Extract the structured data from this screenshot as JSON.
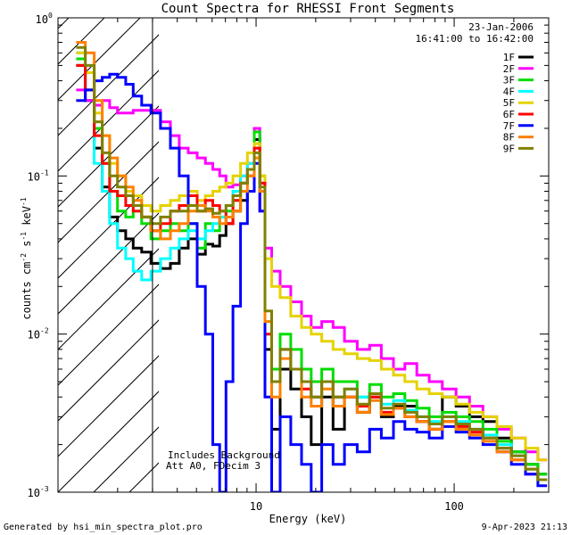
{
  "chart_data": {
    "type": "line",
    "title": "Count Spectra for RHESSI Front Segments",
    "xlabel": "Energy (keV)",
    "ylabel_parts": {
      "a": "counts cm",
      "b": "-2",
      "c": " s",
      "d": "-1",
      "e": " keV",
      "f": "-1"
    },
    "x_scale": "log",
    "y_scale": "log",
    "xlim": [
      1.0,
      300
    ],
    "ylim": [
      0.001,
      1.0
    ],
    "x_tick_labels": [
      {
        "v": 10,
        "label": "10"
      },
      {
        "v": 100,
        "label": "100"
      }
    ],
    "y_tick_labels": [
      {
        "v": 1.0,
        "base": "10",
        "exp": "0"
      },
      {
        "v": 0.1,
        "base": "10",
        "exp": "-1"
      },
      {
        "v": 0.01,
        "base": "10",
        "exp": "-2"
      },
      {
        "v": 0.001,
        "base": "10",
        "exp": "-3"
      }
    ],
    "shaded_region_keV": [
      1.0,
      3.0
    ],
    "date": "23-Jan-2006",
    "time_range": "16:41:00 to 16:42:00",
    "annotation_lines": [
      "Includes Background",
      "Att A0, FDecim 3"
    ],
    "legend": [
      {
        "name": "1F",
        "color": "#000000"
      },
      {
        "name": "2F",
        "color": "#ff00ff"
      },
      {
        "name": "3F",
        "color": "#00dd00"
      },
      {
        "name": "4F",
        "color": "#00ffff"
      },
      {
        "name": "5F",
        "color": "#e6d200"
      },
      {
        "name": "6F",
        "color": "#ff0000"
      },
      {
        "name": "7F",
        "color": "#0000ff"
      },
      {
        "name": "8F",
        "color": "#ff8000"
      },
      {
        "name": "9F",
        "color": "#808000"
      }
    ],
    "series": [
      {
        "name": "1F",
        "x": [
          1.3,
          1.45,
          1.6,
          1.75,
          1.9,
          2.1,
          2.3,
          2.5,
          2.8,
          3.1,
          3.5,
          3.9,
          4.3,
          4.8,
          5.3,
          5.8,
          6.3,
          6.8,
          7.3,
          8.0,
          8.7,
          9.4,
          10.2,
          10.7,
          11.5,
          12.5,
          14,
          16,
          18,
          20,
          23,
          26,
          30,
          35,
          40,
          46,
          53,
          60,
          70,
          80,
          95,
          110,
          130,
          150,
          180,
          210,
          250,
          280
        ],
        "y": [
          0.5,
          0.3,
          0.15,
          0.085,
          0.055,
          0.045,
          0.04,
          0.035,
          0.033,
          0.028,
          0.026,
          0.028,
          0.035,
          0.04,
          0.032,
          0.037,
          0.036,
          0.042,
          0.05,
          0.06,
          0.07,
          0.08,
          0.17,
          0.09,
          0.008,
          0.0025,
          0.006,
          0.0045,
          0.003,
          0.002,
          0.004,
          0.0025,
          0.004,
          0.0032,
          0.004,
          0.003,
          0.0035,
          0.0035,
          0.0028,
          0.0025,
          0.004,
          0.0035,
          0.003,
          0.0028,
          0.0022,
          0.0018,
          0.0015,
          0.0013
        ]
      },
      {
        "name": "2F",
        "x": [
          1.3,
          1.45,
          1.6,
          1.75,
          1.9,
          2.1,
          2.3,
          2.5,
          2.8,
          3.1,
          3.5,
          3.9,
          4.3,
          4.8,
          5.3,
          5.8,
          6.3,
          6.8,
          7.3,
          8.0,
          8.7,
          9.4,
          10.2,
          10.7,
          11.5,
          12.5,
          14,
          16,
          18,
          20,
          23,
          26,
          30,
          35,
          40,
          46,
          53,
          60,
          70,
          80,
          95,
          110,
          130,
          150,
          180,
          210,
          250,
          280
        ],
        "y": [
          0.35,
          0.3,
          0.28,
          0.3,
          0.27,
          0.25,
          0.25,
          0.26,
          0.26,
          0.26,
          0.22,
          0.18,
          0.15,
          0.14,
          0.13,
          0.12,
          0.11,
          0.1,
          0.085,
          0.088,
          0.1,
          0.12,
          0.2,
          0.06,
          0.035,
          0.025,
          0.02,
          0.016,
          0.013,
          0.011,
          0.012,
          0.011,
          0.009,
          0.008,
          0.0085,
          0.007,
          0.006,
          0.0065,
          0.0055,
          0.005,
          0.0045,
          0.004,
          0.0035,
          0.003,
          0.0025,
          0.0022,
          0.0018,
          0.0016
        ]
      },
      {
        "name": "3F",
        "x": [
          1.3,
          1.45,
          1.6,
          1.75,
          1.9,
          2.1,
          2.3,
          2.5,
          2.8,
          3.1,
          3.5,
          3.9,
          4.3,
          4.8,
          5.3,
          5.8,
          6.3,
          6.8,
          7.3,
          8.0,
          8.7,
          9.4,
          10.2,
          10.7,
          11.5,
          12.5,
          14,
          16,
          18,
          20,
          23,
          26,
          30,
          35,
          40,
          46,
          53,
          60,
          70,
          80,
          95,
          110,
          130,
          150,
          180,
          210,
          250,
          280
        ],
        "y": [
          0.55,
          0.45,
          0.2,
          0.12,
          0.08,
          0.06,
          0.055,
          0.06,
          0.05,
          0.04,
          0.045,
          0.05,
          0.045,
          0.05,
          0.035,
          0.05,
          0.045,
          0.055,
          0.06,
          0.07,
          0.09,
          0.1,
          0.19,
          0.1,
          0.012,
          0.006,
          0.01,
          0.008,
          0.006,
          0.005,
          0.006,
          0.005,
          0.005,
          0.004,
          0.0048,
          0.004,
          0.0042,
          0.0038,
          0.0034,
          0.003,
          0.0032,
          0.003,
          0.0028,
          0.0025,
          0.0021,
          0.0018,
          0.0015,
          0.0013
        ]
      },
      {
        "name": "4F",
        "x": [
          1.3,
          1.45,
          1.6,
          1.75,
          1.9,
          2.1,
          2.3,
          2.5,
          2.8,
          3.1,
          3.5,
          3.9,
          4.3,
          4.8,
          5.3,
          5.8,
          6.3,
          6.8,
          7.3,
          8.0,
          8.7,
          9.4,
          10.2,
          10.7,
          11.5,
          12.5,
          14,
          16,
          18,
          20,
          23,
          26,
          30,
          35,
          40,
          46,
          53,
          60,
          70,
          80,
          95,
          110,
          130,
          150,
          180,
          210,
          250,
          280
        ],
        "y": [
          0.6,
          0.35,
          0.12,
          0.08,
          0.05,
          0.035,
          0.03,
          0.025,
          0.022,
          0.025,
          0.03,
          0.035,
          0.04,
          0.045,
          0.04,
          0.045,
          0.05,
          0.055,
          0.065,
          0.08,
          0.1,
          0.12,
          0.15,
          0.08,
          0.01,
          0.005,
          0.008,
          0.006,
          0.005,
          0.004,
          0.005,
          0.004,
          0.0045,
          0.004,
          0.0042,
          0.0036,
          0.0038,
          0.0033,
          0.003,
          0.0028,
          0.003,
          0.0028,
          0.0025,
          0.0023,
          0.002,
          0.0017,
          0.0014,
          0.0012
        ]
      },
      {
        "name": "5F",
        "x": [
          1.3,
          1.45,
          1.6,
          1.75,
          1.9,
          2.1,
          2.3,
          2.5,
          2.8,
          3.1,
          3.5,
          3.9,
          4.3,
          4.8,
          5.3,
          5.8,
          6.3,
          6.8,
          7.3,
          8.0,
          8.7,
          9.4,
          10.2,
          10.7,
          11.5,
          12.5,
          14,
          16,
          18,
          20,
          23,
          26,
          30,
          35,
          40,
          46,
          53,
          60,
          70,
          80,
          95,
          110,
          130,
          150,
          180,
          210,
          250,
          280
        ],
        "y": [
          0.6,
          0.45,
          0.25,
          0.18,
          0.12,
          0.1,
          0.08,
          0.075,
          0.065,
          0.06,
          0.065,
          0.07,
          0.075,
          0.08,
          0.07,
          0.075,
          0.08,
          0.085,
          0.09,
          0.1,
          0.12,
          0.14,
          0.16,
          0.1,
          0.03,
          0.02,
          0.017,
          0.013,
          0.011,
          0.01,
          0.009,
          0.008,
          0.0075,
          0.007,
          0.0068,
          0.006,
          0.0055,
          0.005,
          0.0045,
          0.0042,
          0.004,
          0.0036,
          0.0032,
          0.003,
          0.0026,
          0.0022,
          0.0019,
          0.0016
        ]
      },
      {
        "name": "6F",
        "x": [
          1.3,
          1.45,
          1.6,
          1.75,
          1.9,
          2.1,
          2.3,
          2.5,
          2.8,
          3.1,
          3.5,
          3.9,
          4.3,
          4.8,
          5.3,
          5.8,
          6.3,
          6.8,
          7.3,
          8.0,
          8.7,
          9.4,
          10.2,
          10.7,
          11.5,
          12.5,
          14,
          16,
          18,
          20,
          23,
          26,
          30,
          35,
          40,
          46,
          53,
          60,
          70,
          80,
          95,
          110,
          130,
          150,
          180,
          210,
          250,
          280
        ],
        "y": [
          0.5,
          0.35,
          0.18,
          0.12,
          0.08,
          0.075,
          0.065,
          0.06,
          0.055,
          0.045,
          0.05,
          0.06,
          0.065,
          0.075,
          0.06,
          0.07,
          0.065,
          0.06,
          0.05,
          0.07,
          0.09,
          0.1,
          0.15,
          0.09,
          0.01,
          0.005,
          0.008,
          0.006,
          0.0045,
          0.004,
          0.005,
          0.004,
          0.004,
          0.0035,
          0.004,
          0.0032,
          0.0034,
          0.003,
          0.0028,
          0.0025,
          0.0028,
          0.0026,
          0.0024,
          0.0022,
          0.0019,
          0.0016,
          0.0013,
          0.0012
        ]
      },
      {
        "name": "7F",
        "x": [
          1.3,
          1.45,
          1.6,
          1.75,
          1.9,
          2.1,
          2.3,
          2.5,
          2.8,
          3.1,
          3.5,
          3.9,
          4.3,
          4.8,
          5.3,
          5.8,
          6.3,
          6.8,
          7.3,
          8.0,
          8.7,
          9.4,
          10.2,
          10.7,
          11.5,
          12.5,
          14,
          16,
          18,
          20,
          23,
          26,
          30,
          35,
          40,
          46,
          53,
          60,
          70,
          80,
          95,
          110,
          130,
          150,
          180,
          210,
          250,
          280
        ],
        "y": [
          0.3,
          0.35,
          0.4,
          0.42,
          0.44,
          0.42,
          0.38,
          0.32,
          0.28,
          0.25,
          0.2,
          0.15,
          0.1,
          0.05,
          0.02,
          0.01,
          0.002,
          0.001,
          0.005,
          0.015,
          0.05,
          0.08,
          0.12,
          0.06,
          0.004,
          0.001,
          0.003,
          0.002,
          0.0015,
          0.001,
          0.002,
          0.0015,
          0.002,
          0.0018,
          0.0025,
          0.0022,
          0.0028,
          0.0025,
          0.0024,
          0.0022,
          0.0026,
          0.0024,
          0.0022,
          0.002,
          0.0018,
          0.0015,
          0.0013,
          0.0011
        ]
      },
      {
        "name": "8F",
        "x": [
          1.3,
          1.45,
          1.6,
          1.75,
          1.9,
          2.1,
          2.3,
          2.5,
          2.8,
          3.1,
          3.5,
          3.9,
          4.3,
          4.8,
          5.3,
          5.8,
          6.3,
          6.8,
          7.3,
          8.0,
          8.7,
          9.4,
          10.2,
          10.7,
          11.5,
          12.5,
          14,
          16,
          18,
          20,
          23,
          26,
          30,
          35,
          40,
          46,
          53,
          60,
          70,
          80,
          95,
          110,
          130,
          150,
          180,
          210,
          250,
          280
        ],
        "y": [
          0.7,
          0.6,
          0.3,
          0.18,
          0.13,
          0.1,
          0.085,
          0.07,
          0.055,
          0.045,
          0.04,
          0.045,
          0.05,
          0.06,
          0.065,
          0.06,
          0.055,
          0.05,
          0.055,
          0.06,
          0.08,
          0.1,
          0.13,
          0.08,
          0.012,
          0.004,
          0.007,
          0.006,
          0.004,
          0.0035,
          0.0045,
          0.0035,
          0.004,
          0.0032,
          0.0038,
          0.0031,
          0.0034,
          0.003,
          0.0028,
          0.0025,
          0.0028,
          0.0025,
          0.0023,
          0.0021,
          0.0018,
          0.0016,
          0.0014,
          0.0012
        ]
      },
      {
        "name": "9F",
        "x": [
          1.3,
          1.45,
          1.6,
          1.75,
          1.9,
          2.1,
          2.3,
          2.5,
          2.8,
          3.1,
          3.5,
          3.9,
          4.3,
          4.8,
          5.3,
          5.8,
          6.3,
          6.8,
          7.3,
          8.0,
          8.7,
          9.4,
          10.2,
          10.7,
          11.5,
          12.5,
          14,
          16,
          18,
          20,
          23,
          26,
          30,
          35,
          40,
          46,
          53,
          60,
          70,
          80,
          95,
          110,
          130,
          150,
          180,
          210,
          250,
          280
        ],
        "y": [
          0.65,
          0.5,
          0.22,
          0.14,
          0.1,
          0.085,
          0.075,
          0.065,
          0.055,
          0.05,
          0.055,
          0.06,
          0.06,
          0.065,
          0.06,
          0.062,
          0.058,
          0.06,
          0.065,
          0.075,
          0.09,
          0.11,
          0.14,
          0.085,
          0.014,
          0.005,
          0.008,
          0.006,
          0.005,
          0.004,
          0.005,
          0.004,
          0.0045,
          0.0036,
          0.0042,
          0.0034,
          0.0036,
          0.0032,
          0.003,
          0.0027,
          0.003,
          0.0027,
          0.0025,
          0.0022,
          0.0019,
          0.0017,
          0.0014,
          0.0012
        ]
      }
    ]
  },
  "footer": {
    "generated_by": "Generated by hsi_min_spectra_plot.pro",
    "timestamp": "9-Apr-2023 21:13"
  }
}
